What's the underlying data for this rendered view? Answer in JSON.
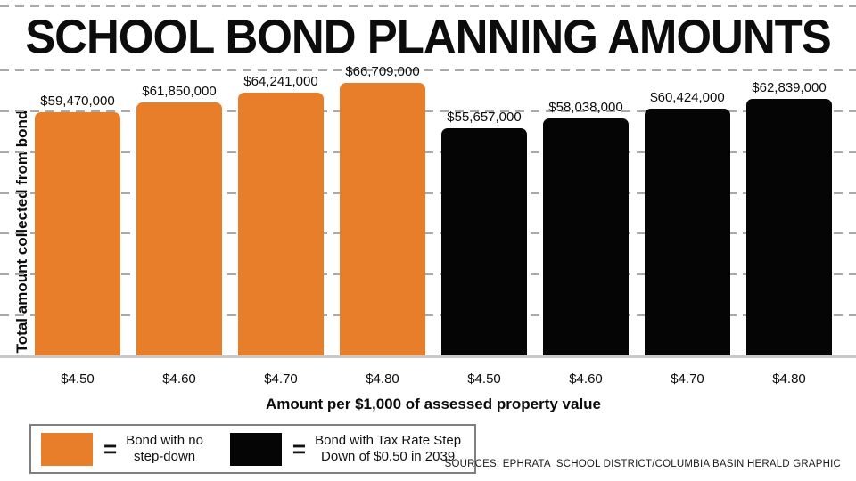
{
  "title": "SCHOOL BOND PLANNING AMOUNTS",
  "y_axis_label": "Total amount collected from bond",
  "x_axis_label": "Amount per $1,000 of assessed property value",
  "source": "SOURCES: EPHRATA  SCHOOL DISTRICT/COLUMBIA BASIN HERALD GRAPHIC",
  "colors": {
    "orange": "#e87e2a",
    "black": "#050505",
    "grid": "#a9a9a9",
    "axis_line": "#c9c9c9"
  },
  "legend": {
    "equals": "=",
    "items": [
      {
        "swatch": "orange",
        "line1": "Bond with no",
        "line2": "step-down"
      },
      {
        "swatch": "black",
        "line1": "Bond with Tax Rate Step",
        "line2": "Down of $0.50 in 2039"
      }
    ]
  },
  "chart_data": {
    "type": "bar",
    "title": "SCHOOL BOND PLANNING AMOUNTS",
    "xlabel": "Amount per $1,000 of assessed property value",
    "ylabel": "Total amount collected from bond",
    "categories": [
      "$4.50",
      "$4.60",
      "$4.70",
      "$4.80",
      "$4.50",
      "$4.60",
      "$4.70",
      "$4.80"
    ],
    "series": [
      {
        "name": "Bond with no step-down",
        "color": "orange",
        "values": [
          59470000,
          61850000,
          64241000,
          66709000
        ]
      },
      {
        "name": "Bond with Tax Rate Step Down of $0.50 in 2039",
        "color": "black",
        "values": [
          55657000,
          58038000,
          60424000,
          62839000
        ]
      }
    ],
    "bar_value_labels": [
      "$59,470,000",
      "$61,850,000",
      "$64,241,000",
      "$66,709,000",
      "$55,657,000",
      "$58,038,000",
      "$60,424,000",
      "$62,839,000"
    ],
    "ylim": [
      0,
      70000000
    ],
    "grid": "horizontal-dashed",
    "gridline_interval": 10000000,
    "legend_position": "bottom-left"
  }
}
